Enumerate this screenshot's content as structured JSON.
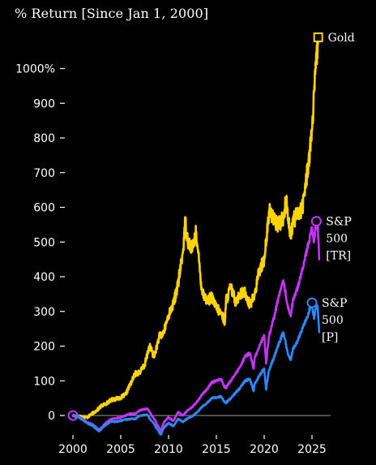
{
  "chart_data": {
    "type": "line",
    "title": "% Return [Since Jan 1, 2000]",
    "xlabel": "",
    "ylabel": "",
    "x_ticks": [
      "2000",
      "2005",
      "2010",
      "2015",
      "2020",
      "2025"
    ],
    "y_ticks": [
      "0",
      "100",
      "200",
      "300",
      "400",
      "500",
      "600",
      "700",
      "800",
      "900",
      "1000%"
    ],
    "xlim": [
      2000,
      2026
    ],
    "ylim": [
      -40,
      1130
    ],
    "grid": false,
    "legend": "direct labels at series ends",
    "series": [
      {
        "name": "Gold",
        "label_lines": [
          "Gold"
        ],
        "color": "#ffd400",
        "marker": "square",
        "points": [
          [
            2000,
            0
          ],
          [
            2000.5,
            -2
          ],
          [
            2001,
            -3
          ],
          [
            2001.5,
            -5
          ],
          [
            2002,
            5
          ],
          [
            2002.5,
            15
          ],
          [
            2003,
            28
          ],
          [
            2003.5,
            35
          ],
          [
            2004,
            45
          ],
          [
            2004.5,
            48
          ],
          [
            2005,
            52
          ],
          [
            2005.5,
            60
          ],
          [
            2006,
            90
          ],
          [
            2006.5,
            120
          ],
          [
            2007,
            125
          ],
          [
            2007.5,
            145
          ],
          [
            2008,
            200
          ],
          [
            2008.5,
            170
          ],
          [
            2009,
            225
          ],
          [
            2009.5,
            240
          ],
          [
            2010,
            290
          ],
          [
            2010.5,
            320
          ],
          [
            2011,
            380
          ],
          [
            2011.5,
            470
          ],
          [
            2011.75,
            560
          ],
          [
            2012,
            505
          ],
          [
            2012.5,
            480
          ],
          [
            2012.9,
            530
          ],
          [
            2013,
            490
          ],
          [
            2013.5,
            360
          ],
          [
            2014,
            330
          ],
          [
            2014.5,
            340
          ],
          [
            2015,
            310
          ],
          [
            2015.5,
            295
          ],
          [
            2015.9,
            270
          ],
          [
            2016,
            330
          ],
          [
            2016.5,
            370
          ],
          [
            2017,
            330
          ],
          [
            2017.5,
            350
          ],
          [
            2018,
            355
          ],
          [
            2018.5,
            320
          ],
          [
            2019,
            345
          ],
          [
            2019.5,
            420
          ],
          [
            2020,
            450
          ],
          [
            2020.6,
            600
          ],
          [
            2021,
            560
          ],
          [
            2021.5,
            550
          ],
          [
            2022,
            570
          ],
          [
            2022.3,
            620
          ],
          [
            2022.8,
            510
          ],
          [
            2023,
            560
          ],
          [
            2023.5,
            580
          ],
          [
            2024,
            600
          ],
          [
            2024.5,
            700
          ],
          [
            2025,
            820
          ],
          [
            2025.4,
            1000
          ],
          [
            2025.65,
            1090
          ]
        ]
      },
      {
        "name": "S&P 500 [TR]",
        "label_lines": [
          "S&P",
          "500",
          "[TR]"
        ],
        "color": "#c832ff",
        "marker": "circle",
        "points": [
          [
            2000,
            0
          ],
          [
            2000.5,
            -2
          ],
          [
            2001,
            -10
          ],
          [
            2001.5,
            -20
          ],
          [
            2002,
            -25
          ],
          [
            2002.75,
            -42
          ],
          [
            2003,
            -35
          ],
          [
            2003.5,
            -20
          ],
          [
            2004,
            -10
          ],
          [
            2004.5,
            -8
          ],
          [
            2005,
            -5
          ],
          [
            2005.5,
            0
          ],
          [
            2006,
            5
          ],
          [
            2006.5,
            5
          ],
          [
            2007,
            15
          ],
          [
            2007.8,
            20
          ],
          [
            2008,
            10
          ],
          [
            2008.5,
            -10
          ],
          [
            2009,
            -35
          ],
          [
            2009.2,
            -45
          ],
          [
            2009.5,
            -20
          ],
          [
            2010,
            -5
          ],
          [
            2010.5,
            -15
          ],
          [
            2011,
            10
          ],
          [
            2011.5,
            0
          ],
          [
            2012,
            15
          ],
          [
            2012.5,
            25
          ],
          [
            2013,
            40
          ],
          [
            2013.5,
            60
          ],
          [
            2014,
            75
          ],
          [
            2014.5,
            95
          ],
          [
            2015,
            100
          ],
          [
            2015.5,
            105
          ],
          [
            2015.8,
            85
          ],
          [
            2016,
            80
          ],
          [
            2016.5,
            100
          ],
          [
            2017,
            120
          ],
          [
            2017.5,
            140
          ],
          [
            2018,
            170
          ],
          [
            2018.5,
            180
          ],
          [
            2018.9,
            135
          ],
          [
            2019,
            165
          ],
          [
            2019.5,
            200
          ],
          [
            2020,
            230
          ],
          [
            2020.2,
            150
          ],
          [
            2020.5,
            230
          ],
          [
            2021,
            280
          ],
          [
            2021.5,
            340
          ],
          [
            2022,
            390
          ],
          [
            2022.5,
            310
          ],
          [
            2022.8,
            290
          ],
          [
            2023,
            330
          ],
          [
            2023.5,
            370
          ],
          [
            2024,
            420
          ],
          [
            2024.5,
            480
          ],
          [
            2025,
            540
          ],
          [
            2025.2,
            500
          ],
          [
            2025.45,
            560
          ],
          [
            2025.6,
            555
          ],
          [
            2025.75,
            450
          ]
        ]
      },
      {
        "name": "S&P 500 [P]",
        "label_lines": [
          "S&P",
          "500",
          "[P]"
        ],
        "color": "#2f87ff",
        "marker": "circle",
        "points": [
          [
            2000,
            0
          ],
          [
            2000.5,
            -3
          ],
          [
            2001,
            -12
          ],
          [
            2001.5,
            -22
          ],
          [
            2002,
            -28
          ],
          [
            2002.75,
            -45
          ],
          [
            2003,
            -38
          ],
          [
            2003.5,
            -25
          ],
          [
            2004,
            -17
          ],
          [
            2004.5,
            -18
          ],
          [
            2005,
            -15
          ],
          [
            2005.5,
            -12
          ],
          [
            2006,
            -10
          ],
          [
            2006.5,
            -10
          ],
          [
            2007,
            0
          ],
          [
            2007.8,
            2
          ],
          [
            2008,
            -8
          ],
          [
            2008.5,
            -25
          ],
          [
            2009,
            -48
          ],
          [
            2009.2,
            -55
          ],
          [
            2009.5,
            -35
          ],
          [
            2010,
            -22
          ],
          [
            2010.5,
            -30
          ],
          [
            2011,
            -10
          ],
          [
            2011.5,
            -18
          ],
          [
            2012,
            -8
          ],
          [
            2012.5,
            -2
          ],
          [
            2013,
            10
          ],
          [
            2013.5,
            25
          ],
          [
            2014,
            35
          ],
          [
            2014.5,
            50
          ],
          [
            2015,
            52
          ],
          [
            2015.5,
            55
          ],
          [
            2015.8,
            40
          ],
          [
            2016,
            36
          ],
          [
            2016.5,
            50
          ],
          [
            2017,
            65
          ],
          [
            2017.5,
            80
          ],
          [
            2018,
            100
          ],
          [
            2018.5,
            105
          ],
          [
            2018.9,
            70
          ],
          [
            2019,
            90
          ],
          [
            2019.5,
            115
          ],
          [
            2020,
            135
          ],
          [
            2020.2,
            75
          ],
          [
            2020.5,
            130
          ],
          [
            2021,
            165
          ],
          [
            2021.5,
            205
          ],
          [
            2022,
            240
          ],
          [
            2022.5,
            175
          ],
          [
            2022.8,
            160
          ],
          [
            2023,
            190
          ],
          [
            2023.5,
            215
          ],
          [
            2024,
            250
          ],
          [
            2024.5,
            285
          ],
          [
            2025,
            325
          ],
          [
            2025.2,
            280
          ],
          [
            2025.45,
            318
          ],
          [
            2025.6,
            310
          ],
          [
            2025.75,
            240
          ]
        ]
      }
    ]
  }
}
